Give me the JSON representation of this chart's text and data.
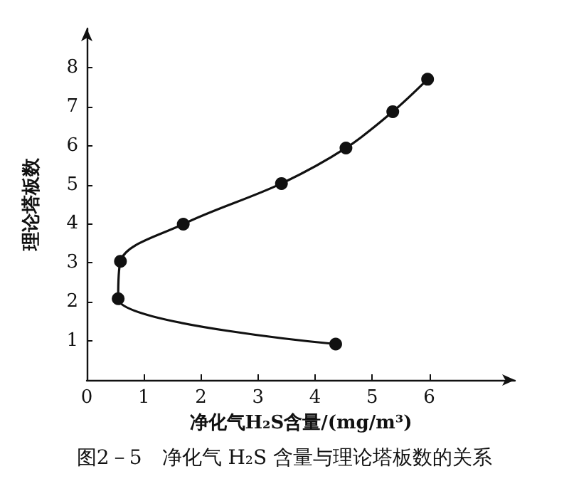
{
  "chart_data": {
    "type": "line",
    "xlabel": "净化气H₂S含量/(mg/m³)",
    "ylabel": "理论塔板数",
    "annotations": [
      "图2－5　净化气 H₂S 含量与理论塔板数的关系"
    ],
    "series": [
      {
        "color": "#111111",
        "x": [
          4.36,
          0.55,
          0.59,
          1.69,
          3.41,
          4.54,
          5.36,
          5.97
        ],
        "values": [
          0.92,
          2.08,
          3.04,
          3.99,
          5.03,
          5.94,
          6.87,
          7.7
        ]
      }
    ],
    "xlim": [
      0,
      7.5
    ],
    "xticks": [
      0,
      1,
      2,
      3,
      4,
      5,
      6
    ],
    "ylim": [
      0,
      9
    ],
    "yticks": [
      1,
      2,
      3,
      4,
      5,
      6,
      7,
      8
    ],
    "grid": false,
    "marker": "circle",
    "line_style": "solid"
  }
}
